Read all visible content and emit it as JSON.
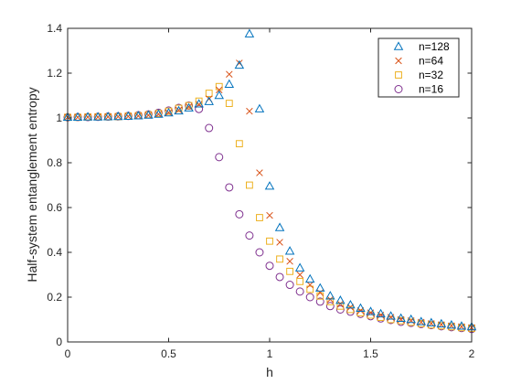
{
  "chart_data": {
    "type": "scatter",
    "title": "",
    "xlabel": "h",
    "ylabel": "Half-system entanglement entropy",
    "xlim": [
      0,
      2
    ],
    "ylim": [
      0,
      1.4
    ],
    "xticks": [
      "0",
      "0.5",
      "1",
      "1.5",
      "2"
    ],
    "yticks": [
      "0",
      "0.2",
      "0.4",
      "0.6",
      "0.8",
      "1",
      "1.2",
      "1.4"
    ],
    "grid": false,
    "legend_position": "top-right",
    "series": [
      {
        "name": "n=128",
        "marker": "triangle",
        "color": "#0072BD",
        "x": [
          0,
          0.05,
          0.1,
          0.15,
          0.2,
          0.25,
          0.3,
          0.35,
          0.4,
          0.45,
          0.5,
          0.55,
          0.6,
          0.65,
          0.7,
          0.75,
          0.8,
          0.85,
          0.9,
          0.95,
          1.0,
          1.05,
          1.1,
          1.15,
          1.2,
          1.25,
          1.3,
          1.35,
          1.4,
          1.45,
          1.5,
          1.55,
          1.6,
          1.65,
          1.7,
          1.75,
          1.8,
          1.85,
          1.9,
          1.95,
          2.0
        ],
        "y": [
          1.003,
          1.003,
          1.004,
          1.004,
          1.005,
          1.006,
          1.007,
          1.009,
          1.012,
          1.016,
          1.022,
          1.031,
          1.044,
          1.062,
          1.073,
          1.1,
          1.15,
          1.235,
          1.375,
          1.04,
          0.695,
          0.51,
          0.405,
          0.33,
          0.28,
          0.24,
          0.205,
          0.185,
          0.165,
          0.15,
          0.135,
          0.125,
          0.115,
          0.105,
          0.1,
          0.09,
          0.085,
          0.08,
          0.075,
          0.07,
          0.067
        ]
      },
      {
        "name": "n=64",
        "marker": "x",
        "color": "#D95319",
        "x": [
          0,
          0.05,
          0.1,
          0.15,
          0.2,
          0.25,
          0.3,
          0.35,
          0.4,
          0.45,
          0.5,
          0.55,
          0.6,
          0.65,
          0.7,
          0.75,
          0.8,
          0.85,
          0.9,
          0.95,
          1.0,
          1.05,
          1.1,
          1.15,
          1.2,
          1.25,
          1.3,
          1.35,
          1.4,
          1.45,
          1.5,
          1.55,
          1.6,
          1.65,
          1.7,
          1.75,
          1.8,
          1.85,
          1.9,
          1.95,
          2.0
        ],
        "y": [
          1.003,
          1.003,
          1.004,
          1.004,
          1.005,
          1.006,
          1.007,
          1.009,
          1.012,
          1.017,
          1.024,
          1.035,
          1.05,
          1.06,
          1.085,
          1.125,
          1.195,
          1.245,
          1.03,
          0.755,
          0.565,
          0.445,
          0.36,
          0.3,
          0.255,
          0.22,
          0.19,
          0.17,
          0.155,
          0.14,
          0.13,
          0.12,
          0.11,
          0.1,
          0.095,
          0.088,
          0.082,
          0.077,
          0.072,
          0.068,
          0.064
        ]
      },
      {
        "name": "n=32",
        "marker": "square",
        "color": "#EDB120",
        "x": [
          0,
          0.05,
          0.1,
          0.15,
          0.2,
          0.25,
          0.3,
          0.35,
          0.4,
          0.45,
          0.5,
          0.55,
          0.6,
          0.65,
          0.7,
          0.75,
          0.8,
          0.85,
          0.9,
          0.95,
          1.0,
          1.05,
          1.1,
          1.15,
          1.2,
          1.25,
          1.3,
          1.35,
          1.4,
          1.45,
          1.5,
          1.55,
          1.6,
          1.65,
          1.7,
          1.75,
          1.8,
          1.85,
          1.9,
          1.95,
          2.0
        ],
        "y": [
          1.003,
          1.003,
          1.004,
          1.005,
          1.005,
          1.006,
          1.008,
          1.01,
          1.014,
          1.02,
          1.03,
          1.043,
          1.055,
          1.075,
          1.11,
          1.14,
          1.065,
          0.885,
          0.7,
          0.555,
          0.45,
          0.37,
          0.315,
          0.27,
          0.235,
          0.205,
          0.18,
          0.16,
          0.145,
          0.13,
          0.12,
          0.11,
          0.1,
          0.095,
          0.088,
          0.082,
          0.076,
          0.072,
          0.068,
          0.064,
          0.061
        ]
      },
      {
        "name": "n=16",
        "marker": "circle",
        "color": "#7E2F8E",
        "x": [
          0,
          0.05,
          0.1,
          0.15,
          0.2,
          0.25,
          0.3,
          0.35,
          0.4,
          0.45,
          0.5,
          0.55,
          0.6,
          0.65,
          0.7,
          0.75,
          0.8,
          0.85,
          0.9,
          0.95,
          1.0,
          1.05,
          1.1,
          1.15,
          1.2,
          1.25,
          1.3,
          1.35,
          1.4,
          1.45,
          1.5,
          1.55,
          1.6,
          1.65,
          1.7,
          1.75,
          1.8,
          1.85,
          1.9,
          1.95,
          2.0
        ],
        "y": [
          1.003,
          1.004,
          1.004,
          1.005,
          1.006,
          1.007,
          1.009,
          1.012,
          1.016,
          1.023,
          1.033,
          1.045,
          1.055,
          1.04,
          0.955,
          0.825,
          0.69,
          0.57,
          0.475,
          0.4,
          0.34,
          0.29,
          0.255,
          0.225,
          0.2,
          0.18,
          0.16,
          0.145,
          0.135,
          0.125,
          0.115,
          0.105,
          0.098,
          0.09,
          0.085,
          0.08,
          0.075,
          0.07,
          0.066,
          0.062,
          0.058
        ]
      }
    ]
  }
}
